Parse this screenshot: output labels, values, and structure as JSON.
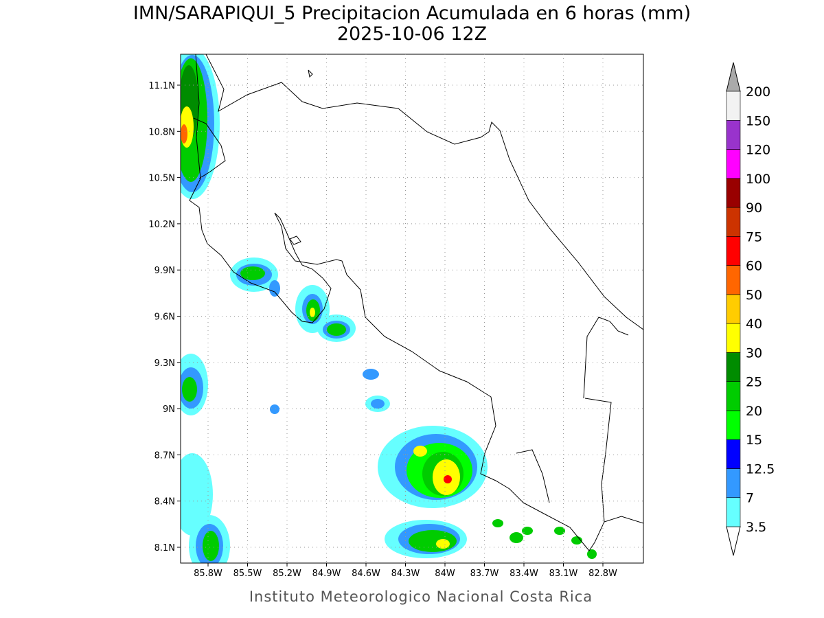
{
  "title": "IMN/SARAPIQUI_5 Precipitacion Acumulada en 6 horas (mm)",
  "subtitle": "2025-10-06 12Z",
  "map": {
    "x_labels": [
      "85.8W",
      "85.5W",
      "85.2W",
      "84.9W",
      "84.6W",
      "84.3W",
      "84W",
      "83.7W",
      "83.4W",
      "83.1W",
      "82.8W"
    ],
    "y_labels": [
      "11.1N",
      "10.8N",
      "10.5N",
      "10.2N",
      "9.9N",
      "9.6N",
      "9.3N",
      "9N",
      "8.7N",
      "8.4N",
      "8.1N"
    ]
  },
  "colorbar": {
    "levels": [
      3.5,
      7,
      12.5,
      15,
      20,
      25,
      30,
      40,
      50,
      60,
      75,
      90,
      100,
      120,
      150,
      200
    ],
    "colors": [
      "#66ffff",
      "#3399ff",
      "#0000ff",
      "#00ff00",
      "#00cc00",
      "#008c00",
      "#ffff00",
      "#ffcc00",
      "#ff6600",
      "#ff0000",
      "#cc3300",
      "#990000",
      "#ff00ff",
      "#9933cc",
      "#f2f2f2"
    ]
  },
  "footer": "Instituto Meteorologico Nacional Costa Rica"
}
